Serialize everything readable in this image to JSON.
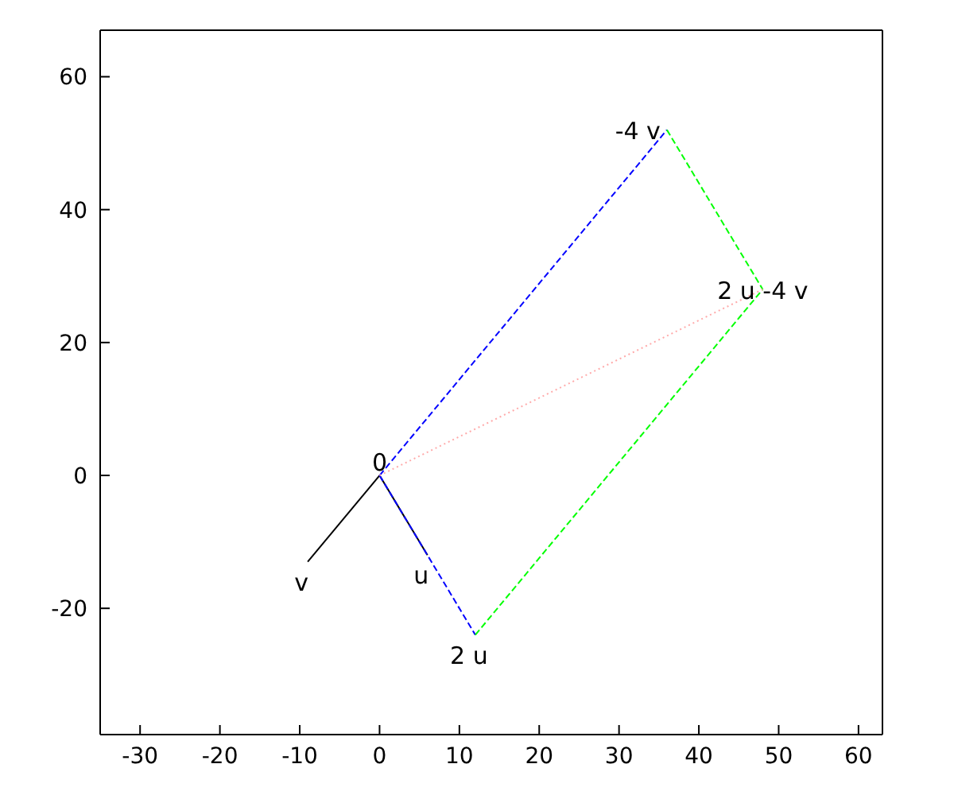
{
  "chart_data": {
    "type": "line",
    "xlim": [
      -35,
      63
    ],
    "ylim": [
      -39,
      67
    ],
    "xticks": [
      -30,
      -20,
      -10,
      0,
      10,
      20,
      30,
      40,
      50,
      60
    ],
    "yticks": [
      -20,
      0,
      20,
      40,
      60
    ],
    "grid": false,
    "legend": false,
    "marker": "none",
    "series": [
      {
        "color": "#000000",
        "x": [
          0,
          -9
        ],
        "values": [
          0,
          -13
        ],
        "line_style": "solid"
      },
      {
        "color": "#000000",
        "x": [
          0,
          6
        ],
        "values": [
          0,
          -12
        ],
        "line_style": "solid"
      },
      {
        "color": "#0000ff",
        "x": [
          0,
          12
        ],
        "values": [
          0,
          -24
        ],
        "line_style": "dashed"
      },
      {
        "color": "#0000ff",
        "x": [
          0,
          36
        ],
        "values": [
          0,
          52
        ],
        "line_style": "dashed"
      },
      {
        "color": "#00ff00",
        "x": [
          36,
          48
        ],
        "values": [
          52,
          28
        ],
        "line_style": "dashed"
      },
      {
        "color": "#00ff00",
        "x": [
          12,
          48
        ],
        "values": [
          -24,
          28
        ],
        "line_style": "dashed"
      },
      {
        "color": "#ffaaaa",
        "x": [
          0,
          48
        ],
        "values": [
          0,
          28
        ],
        "line_style": "dotted"
      }
    ],
    "annotations": [
      {
        "text": "0",
        "x": 0,
        "y": 0
      },
      {
        "text": "u",
        "x": 6,
        "y": -12
      },
      {
        "text": "v",
        "x": -9,
        "y": -13
      },
      {
        "text": "2 u",
        "x": 12,
        "y": -24
      },
      {
        "text": "-4 v",
        "x": 36,
        "y": 52
      },
      {
        "text": "2 u -4 v",
        "x": 48,
        "y": 28
      }
    ]
  }
}
